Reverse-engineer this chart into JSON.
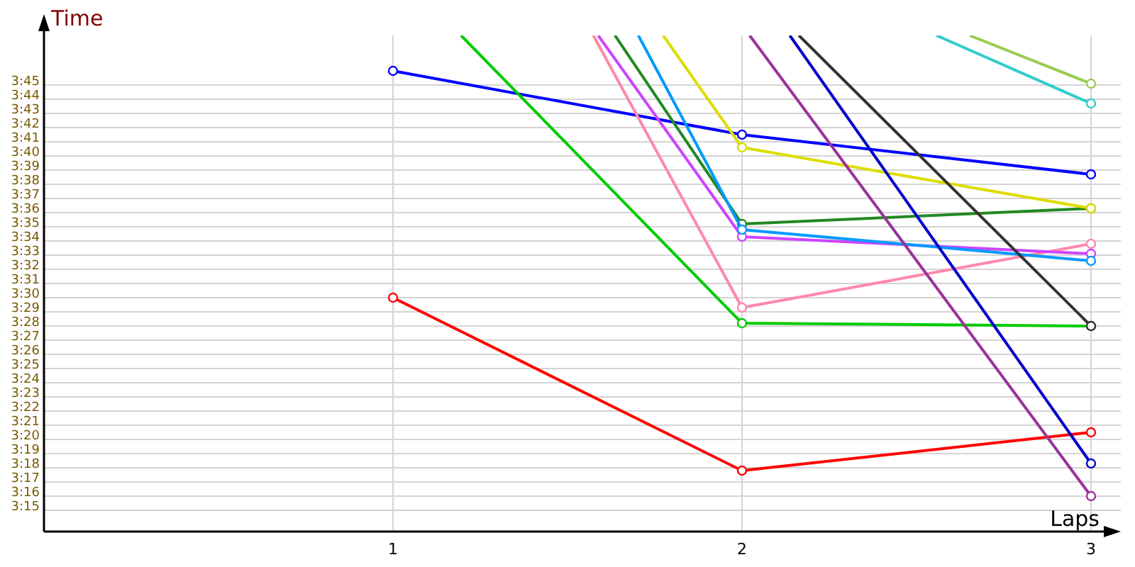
{
  "chart_data": {
    "type": "line",
    "xlabel": "Laps",
    "ylabel": "Time",
    "xlim": [
      0,
      3
    ],
    "xticks": [
      1,
      2,
      3
    ],
    "ylim": [
      193.5,
      228.5
    ],
    "yticks": [
      {
        "value": 195,
        "label": "3:15"
      },
      {
        "value": 196,
        "label": "3:16"
      },
      {
        "value": 197,
        "label": "3:17"
      },
      {
        "value": 198,
        "label": "3:18"
      },
      {
        "value": 199,
        "label": "3:19"
      },
      {
        "value": 200,
        "label": "3:20"
      },
      {
        "value": 201,
        "label": "3:21"
      },
      {
        "value": 202,
        "label": "3:22"
      },
      {
        "value": 203,
        "label": "3:23"
      },
      {
        "value": 204,
        "label": "3:24"
      },
      {
        "value": 205,
        "label": "3:25"
      },
      {
        "value": 206,
        "label": "3:26"
      },
      {
        "value": 207,
        "label": "3:27"
      },
      {
        "value": 208,
        "label": "3:28"
      },
      {
        "value": 209,
        "label": "3:29"
      },
      {
        "value": 210,
        "label": "3:30"
      },
      {
        "value": 211,
        "label": "3:31"
      },
      {
        "value": 212,
        "label": "3:32"
      },
      {
        "value": 213,
        "label": "3:33"
      },
      {
        "value": 214,
        "label": "3:34"
      },
      {
        "value": 215,
        "label": "3:35"
      },
      {
        "value": 216,
        "label": "3:36"
      },
      {
        "value": 217,
        "label": "3:37"
      },
      {
        "value": 218,
        "label": "3:38"
      },
      {
        "value": 219,
        "label": "3:39"
      },
      {
        "value": 220,
        "label": "3:40"
      },
      {
        "value": 221,
        "label": "3:41"
      },
      {
        "value": 222,
        "label": "3:42"
      },
      {
        "value": 223,
        "label": "3:43"
      },
      {
        "value": 224,
        "label": "3:44"
      },
      {
        "value": 225,
        "label": "3:45"
      }
    ],
    "grid": true,
    "marker": "circle",
    "line_style": "solid",
    "series": [
      {
        "color": "#0000ff",
        "x": [
          1,
          2,
          3
        ],
        "values": [
          226,
          221.5,
          218.7
        ]
      },
      {
        "color": "#ff0000",
        "x": [
          1,
          2,
          3
        ],
        "values": [
          210,
          197.8,
          200.5
        ]
      },
      {
        "color": "#00cc00",
        "x": [
          1.195,
          2,
          3
        ],
        "values": [
          228.5,
          208.2,
          208.0
        ]
      },
      {
        "color": "#ff88aa",
        "x": [
          1.574,
          2,
          3
        ],
        "values": [
          228.5,
          209.3,
          213.8
        ]
      },
      {
        "color": "#cc44ff",
        "x": [
          1.588,
          2,
          3
        ],
        "values": [
          228.5,
          214.3,
          213.1
        ]
      },
      {
        "color": "#228822",
        "x": [
          1.636,
          2,
          3
        ],
        "values": [
          228.5,
          215.2,
          216.3
        ]
      },
      {
        "color": "#0099ff",
        "x": [
          1.703,
          2,
          3
        ],
        "values": [
          228.5,
          214.8,
          212.6
        ]
      },
      {
        "color": "#dddd00",
        "x": [
          1.774,
          2,
          3
        ],
        "values": [
          228.5,
          220.6,
          216.3
        ]
      },
      {
        "color": "#993399",
        "x": [
          2.022,
          3
        ],
        "values": [
          228.5,
          196.0
        ]
      },
      {
        "color": "#0000cc",
        "x": [
          2.137,
          3
        ],
        "values": [
          228.5,
          198.3
        ]
      },
      {
        "color": "#333333",
        "x": [
          2.163,
          3
        ],
        "values": [
          228.5,
          208.0
        ]
      },
      {
        "color": "#33cccc",
        "x": [
          2.557,
          3
        ],
        "values": [
          228.5,
          223.7
        ]
      },
      {
        "color": "#99cc55",
        "x": [
          2.652,
          3
        ],
        "values": [
          228.5,
          225.1
        ]
      }
    ]
  }
}
